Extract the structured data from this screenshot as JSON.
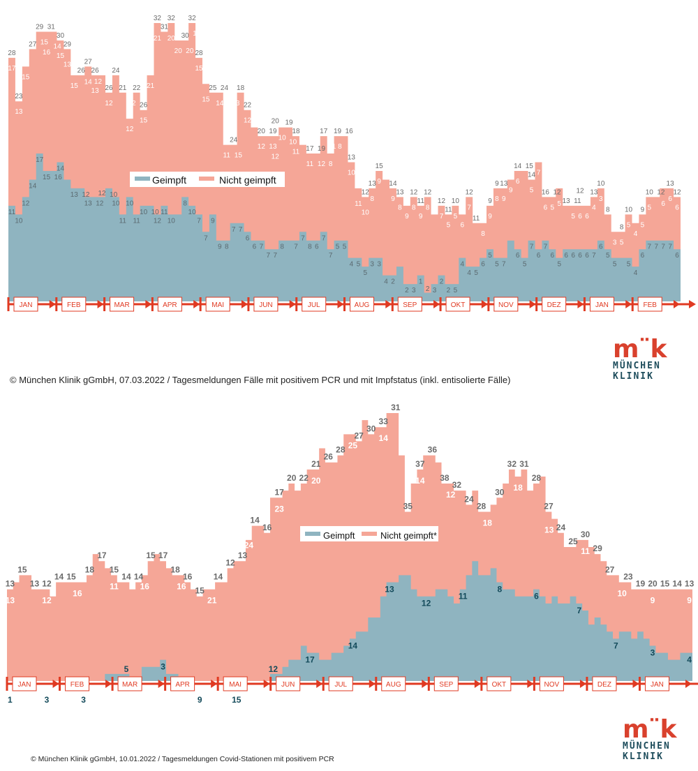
{
  "colors": {
    "geimpft": "#8fb4c0",
    "nicht_geimpft": "#f5a697",
    "axis": "#e03a22",
    "label_dark": "#6b6b6b",
    "label_light": "#ffffff",
    "label_teal": "#134a5a",
    "logo_red": "#d9412d",
    "logo_teal": "#1e4d5c"
  },
  "logo": {
    "mark": "m¨k",
    "line1": "MÜNCHEN",
    "line2": "KLINIK"
  },
  "chart_data": [
    {
      "type": "area",
      "subtype": "stacked-step",
      "title": "",
      "caption": "© München Klinik gGmbH, 07.03.2022 / Tagesmeldungen Fälle mit positivem PCR und mit Impfstatus (inkl. entisolierte Fälle)",
      "legend": [
        "Geimpft",
        "Nicht geimpft"
      ],
      "legend_position": "center",
      "months": [
        "JAN",
        "FEB",
        "MAR",
        "APR",
        "MAI",
        "JUN",
        "JUL",
        "AUG",
        "SEP",
        "OKT",
        "NOV",
        "DEZ",
        "JAN",
        "FEB"
      ],
      "ylim": [
        0,
        32
      ],
      "series": [
        {
          "name": "Geimpft",
          "values": [
            11,
            10,
            12,
            14,
            17,
            15,
            15,
            16,
            14,
            13,
            13,
            12,
            12,
            12,
            13,
            12,
            10,
            12,
            10,
            11,
            11,
            10,
            11,
            10,
            10,
            12,
            11,
            10,
            8,
            10,
            7,
            7,
            9,
            9,
            8,
            7,
            7,
            6,
            6,
            7,
            7,
            7,
            8,
            7,
            7,
            8,
            6,
            7,
            7,
            5,
            5,
            4,
            5,
            5,
            3,
            3,
            4,
            2,
            2,
            3,
            1,
            2,
            3,
            2,
            2,
            5,
            4,
            4,
            5,
            6,
            5,
            5,
            7,
            6,
            5,
            7,
            6,
            7,
            6,
            5,
            6,
            6,
            6,
            6,
            6,
            7,
            6,
            5,
            5,
            5,
            4,
            6,
            7,
            7,
            7,
            7,
            6
          ]
        },
        {
          "name": "Total",
          "values": [
            28,
            23,
            27,
            29,
            31,
            31,
            31,
            30,
            29,
            26,
            26,
            27,
            26,
            26,
            24,
            26,
            24,
            21,
            24,
            22,
            26,
            32,
            31,
            32,
            30,
            30,
            32,
            28,
            25,
            24,
            24,
            18,
            18,
            24,
            22,
            20,
            19,
            19,
            19,
            20,
            20,
            19,
            18,
            17,
            17,
            19,
            17,
            19,
            19,
            16,
            13,
            12,
            13,
            15,
            14,
            13,
            12,
            11,
            12,
            11,
            12,
            10,
            11,
            10,
            11,
            10,
            12,
            9,
            9,
            11,
            13,
            13,
            14,
            15,
            15,
            14,
            16,
            12,
            12,
            13,
            11,
            11,
            11,
            11,
            12,
            13,
            10,
            8,
            8,
            10,
            9,
            10,
            12,
            12,
            13,
            13,
            12
          ]
        }
      ],
      "top_labels": [
        28,
        23,
        27,
        29,
        31,
        30,
        29,
        26,
        27,
        26,
        26,
        24,
        21,
        22,
        26,
        32,
        31,
        32,
        30,
        32,
        28,
        25,
        24,
        24,
        18,
        22,
        20,
        19,
        20,
        19,
        18,
        17,
        19,
        17,
        19,
        16,
        13,
        12,
        13,
        15,
        14,
        13,
        12,
        11,
        12,
        12,
        11,
        10,
        12,
        11,
        9,
        9,
        13,
        14,
        15,
        14,
        16,
        12,
        13,
        11,
        12,
        13,
        10,
        8,
        8,
        10,
        9,
        10,
        12,
        13,
        12
      ],
      "nicht_geimpft_labels": [
        17,
        13,
        15,
        15,
        16,
        14,
        15,
        13,
        15,
        14,
        13,
        12,
        12,
        11,
        12,
        12,
        15,
        21,
        21,
        20,
        20,
        20,
        17,
        15,
        15,
        14,
        11,
        15,
        13,
        12,
        12,
        13,
        12,
        10,
        10,
        11,
        11,
        12,
        11,
        8,
        8,
        10,
        11,
        10,
        8,
        9,
        9,
        8,
        9,
        8,
        9,
        8,
        7,
        5,
        5,
        6,
        7,
        8,
        9,
        8,
        9,
        9,
        6,
        5,
        7,
        6,
        5,
        5,
        5,
        6,
        6,
        4,
        3,
        3,
        5,
        5,
        4,
        5,
        5,
        6,
        6,
        6
      ],
      "geimpft_labels": [
        11,
        10,
        12,
        14,
        17,
        15,
        16,
        14,
        13,
        12,
        13,
        12,
        12,
        10,
        10,
        11,
        10,
        11,
        10,
        10,
        12,
        11,
        10,
        8,
        10,
        7,
        7,
        9,
        9,
        8,
        7,
        7,
        6,
        6,
        7,
        7,
        7,
        8,
        7,
        7,
        8,
        6,
        7,
        7,
        5,
        5,
        4,
        5,
        5,
        3,
        3,
        4,
        2,
        2,
        3,
        1,
        2,
        3,
        2,
        2,
        5,
        4,
        4,
        5,
        6,
        5,
        5,
        7,
        6,
        5,
        7,
        6,
        7,
        6,
        5,
        6,
        6,
        6,
        6,
        7,
        6,
        5,
        5,
        5,
        4,
        6,
        7,
        7,
        7,
        7,
        6
      ]
    },
    {
      "type": "area",
      "subtype": "stacked-step",
      "title": "",
      "caption": "© München Klinik gGmbH, 10.01.2022 / Tagesmeldungen Covid-Stationen mit positivem PCR",
      "legend": [
        "Geimpft",
        "Nicht geimpft*"
      ],
      "legend_position": "center",
      "months": [
        "JAN",
        "FEB",
        "MAR",
        "APR",
        "MAI",
        "JUN",
        "JUL",
        "AUG",
        "SEP",
        "OKT",
        "NOV",
        "DEZ",
        "JAN"
      ],
      "ylim": [
        0,
        38
      ],
      "series": [
        {
          "name": "Geimpft",
          "values": [
            0,
            0,
            0,
            0,
            0,
            0,
            0,
            0,
            0,
            0,
            0,
            0,
            0,
            0,
            0,
            0,
            1,
            1,
            1,
            1,
            0,
            0,
            2,
            2,
            2,
            3,
            1,
            1,
            0,
            0,
            0,
            0,
            0,
            0,
            0,
            0,
            0,
            0,
            0,
            0,
            0,
            0,
            0,
            1,
            1,
            2,
            3,
            3,
            5,
            4,
            4,
            3,
            3,
            4,
            4,
            5,
            6,
            7,
            7,
            9,
            9,
            12,
            14,
            14,
            15,
            15,
            13,
            12,
            12,
            12,
            13,
            13,
            12,
            11,
            13,
            15,
            17,
            15,
            15,
            16,
            14,
            13,
            13,
            12,
            12,
            12,
            13,
            12,
            11,
            12,
            11,
            11,
            12,
            11,
            10,
            8,
            9,
            8,
            7,
            6,
            7,
            7,
            6,
            7,
            6,
            5,
            4,
            4,
            3,
            3,
            4,
            4
          ]
        },
        {
          "name": "Total",
          "values": [
            13,
            14,
            15,
            15,
            13,
            13,
            13,
            12,
            14,
            14,
            14,
            14,
            14,
            15,
            18,
            17,
            16,
            15,
            14,
            14,
            13,
            14,
            15,
            17,
            18,
            17,
            16,
            15,
            15,
            14,
            13,
            12,
            13,
            13,
            14,
            14,
            16,
            17,
            17,
            20,
            22,
            22,
            21,
            26,
            26,
            27,
            28,
            27,
            28,
            30,
            30,
            33,
            31,
            31,
            32,
            35,
            35,
            34,
            37,
            35,
            36,
            36,
            38,
            38,
            32,
            24,
            28,
            30,
            32,
            32,
            31,
            28,
            28,
            27,
            27,
            25,
            27,
            24,
            24,
            25,
            26,
            28,
            30,
            29,
            30,
            27,
            28,
            29,
            24,
            23,
            21,
            19,
            19,
            20,
            20,
            19,
            18,
            17,
            15,
            15,
            14,
            14,
            13,
            13,
            13,
            13,
            13,
            13,
            13,
            13,
            13,
            13
          ]
        }
      ],
      "top_labels": [
        13,
        15,
        13,
        12,
        14,
        15,
        18,
        17,
        15,
        14,
        14,
        15,
        17,
        18,
        16,
        15,
        14,
        12,
        13,
        14,
        16,
        17,
        20,
        22,
        21,
        26,
        28,
        27,
        30,
        33,
        31,
        35,
        37,
        36,
        38,
        32,
        24,
        28,
        30,
        32,
        31,
        28,
        27,
        24,
        25,
        30,
        29,
        27,
        23,
        19,
        20,
        15,
        14,
        13
      ],
      "nicht_geimpft_labels": [
        13,
        12,
        16,
        11,
        16,
        16,
        21,
        24,
        23,
        20,
        25,
        14,
        14,
        12,
        18,
        18,
        13,
        11,
        10,
        9,
        9
      ],
      "geimpft_labels": [
        1,
        3,
        3,
        5,
        3,
        9,
        15,
        12,
        17,
        14,
        13,
        12,
        11,
        8,
        6,
        7,
        7,
        3,
        4
      ]
    }
  ]
}
